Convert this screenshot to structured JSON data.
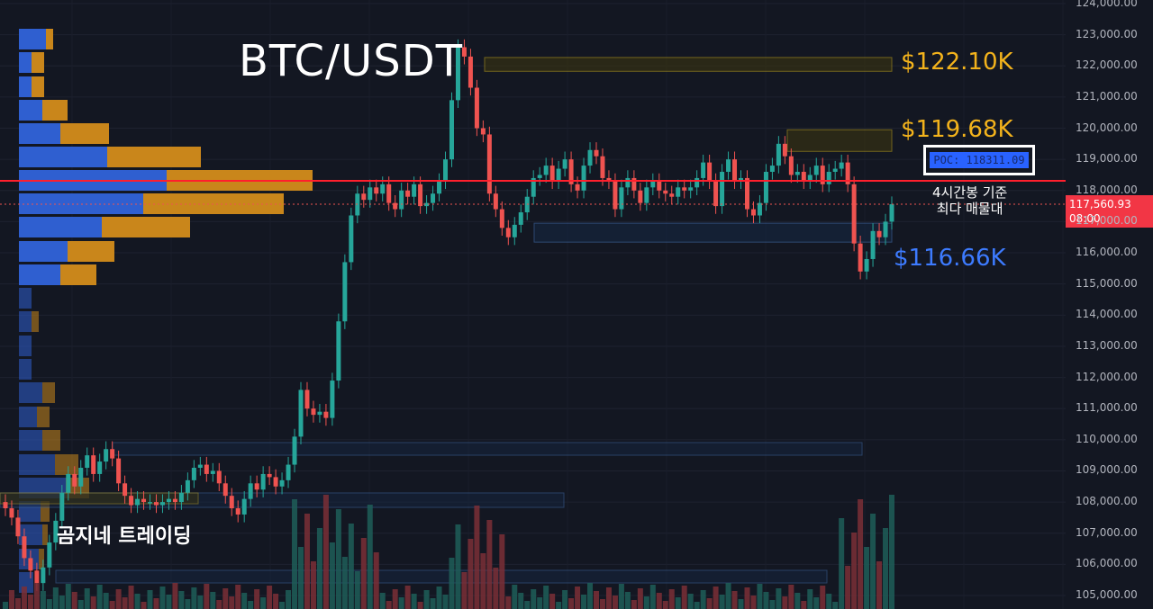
{
  "title": "BTC/USDT",
  "brand": "곰지네 트레이딩",
  "levels": {
    "upper": "$122.10K",
    "mid": "$119.68K",
    "lower": "$116.66K"
  },
  "poc": {
    "label": "POC: 118311.09",
    "note_line1": "4시간봉 기준",
    "note_line2": "최다 매물대"
  },
  "current_price": {
    "price": "117,560.93",
    "time": "08:00"
  },
  "colors": {
    "background": "#131722",
    "up": "#26a69a",
    "down": "#ef5350",
    "poc_line": "#ff1f2d",
    "level_yellow": "#f3b31c",
    "level_blue": "#3d7bff"
  },
  "chart_data": {
    "type": "candlestick",
    "symbol": "BTC/USDT",
    "timeframe_note": "4시간봉",
    "ylim": [
      104800,
      124000
    ],
    "y_ticks": [
      "124,000.00",
      "123,000.00",
      "122,000.00",
      "121,000.00",
      "120,000.00",
      "119,000.00",
      "118,000.00",
      "117,000.00",
      "116,000.00",
      "115,000.00",
      "114,000.00",
      "113,000.00",
      "112,000.00",
      "111,000.00",
      "110,000.00",
      "109,000.00",
      "108,000.00",
      "107,000.00",
      "106,000.00",
      "105,000.00"
    ],
    "poc_price": 118311.09,
    "last_price": 117560.93,
    "levels": [
      122100,
      119680,
      116660
    ]
  }
}
